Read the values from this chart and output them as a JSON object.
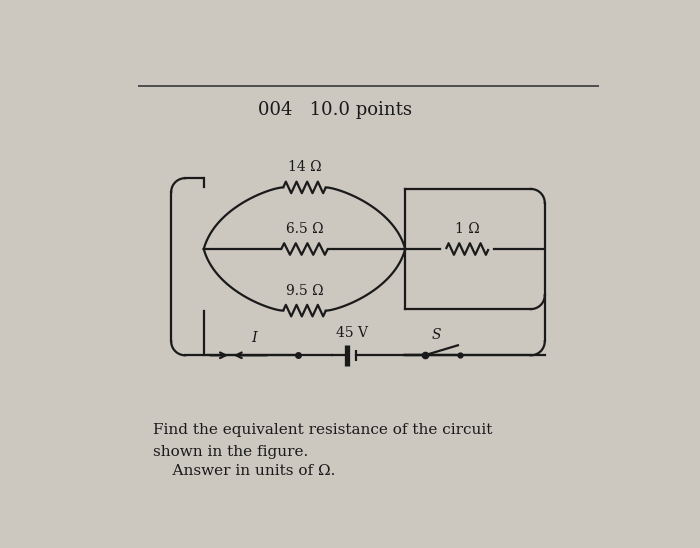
{
  "title": "004   10.0 points",
  "title_fontsize": 13,
  "bg_color": "#ccc8c0",
  "resistors_left": [
    "14 Ω",
    "6.5 Ω",
    "9.5 Ω"
  ],
  "resistor_right": "1 Ω",
  "voltage": "45 V",
  "current_label": "I",
  "switch_label": "S",
  "footer_line1": "Find the equivalent resistance of the circuit",
  "footer_line2": "shown in the figure.",
  "footer_line3": "    Answer in units of Ω.",
  "footer_fontsize": 11,
  "line_color": "#1a1a1a",
  "top_line_color": "#444444",
  "lw": 1.6
}
